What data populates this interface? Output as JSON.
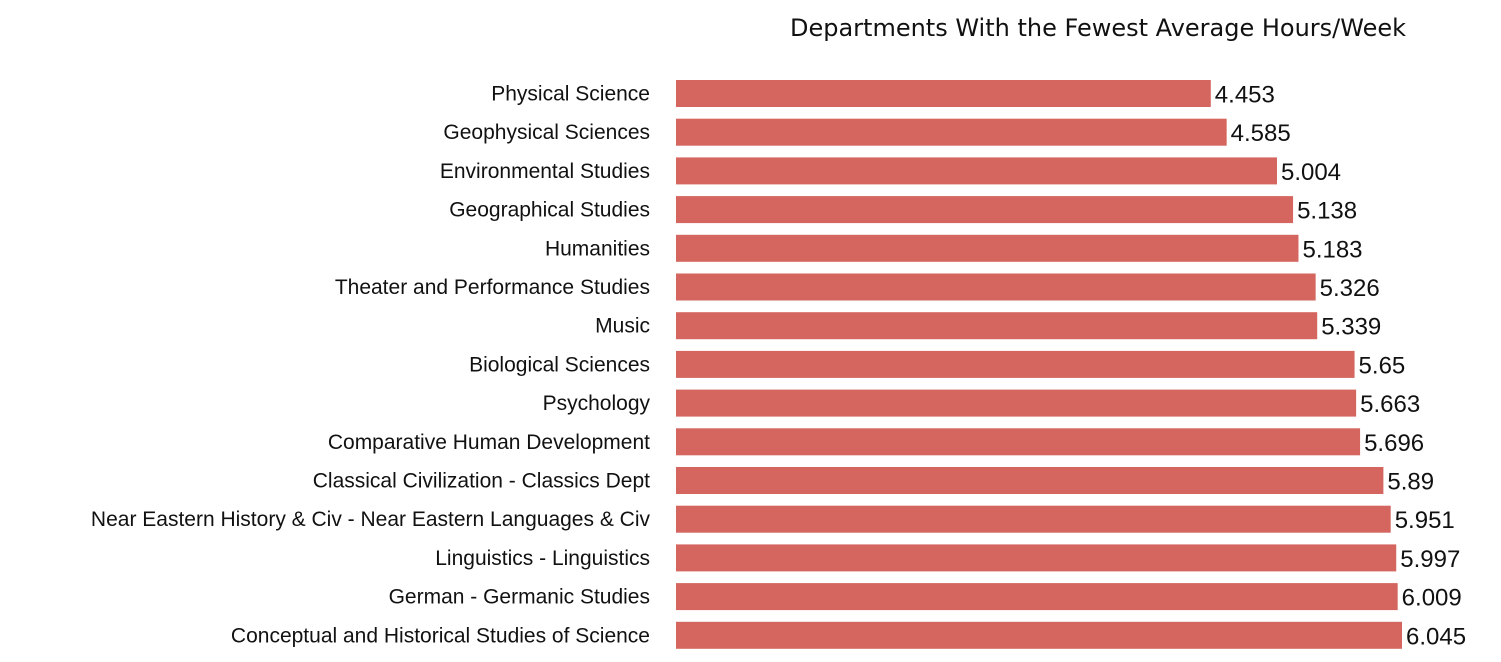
{
  "chart_data": {
    "type": "bar",
    "orientation": "horizontal",
    "title": "Departments With the Fewest Average Hours/Week",
    "xlabel": "",
    "ylabel": "",
    "grid": false,
    "legend": "none",
    "bar_color": "#d4665f",
    "xlim": [
      0,
      6.045
    ],
    "categories": [
      "Physical Science",
      "Geophysical Sciences",
      "Environmental Studies",
      "Geographical Studies",
      "Humanities",
      "Theater and Performance Studies",
      "Music",
      "Biological Sciences",
      "Psychology",
      "Comparative Human Development",
      "Classical Civilization - Classics Dept",
      "Near Eastern History & Civ  - Near Eastern Languages & Civ",
      "Linguistics - Linguistics",
      "German - Germanic Studies",
      "Conceptual and Historical Studies of Science"
    ],
    "values": [
      4.453,
      4.585,
      5.004,
      5.138,
      5.183,
      5.326,
      5.339,
      5.65,
      5.663,
      5.696,
      5.89,
      5.951,
      5.997,
      6.009,
      6.045
    ],
    "value_labels": [
      "4.453",
      "4.585",
      "5.004",
      "5.138",
      "5.183",
      "5.326",
      "5.339",
      "5.65",
      "5.663",
      "5.696",
      "5.89",
      "5.951",
      "5.997",
      "6.009",
      "6.045"
    ]
  }
}
